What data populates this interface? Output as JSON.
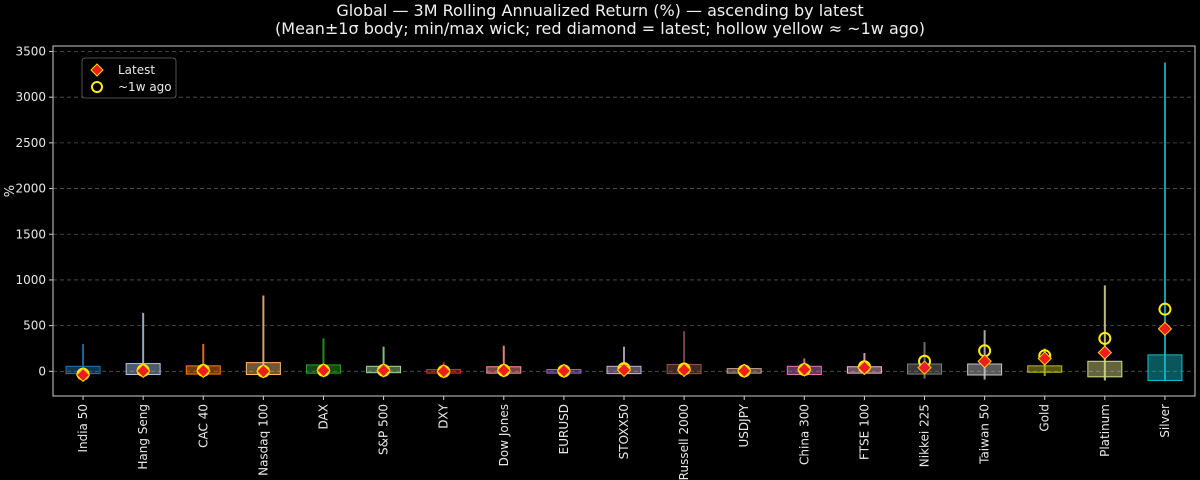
{
  "chart_data": {
    "type": "box",
    "title": "Global — 3M Rolling Annualized Return (%) — ascending by latest",
    "subtitle": "(Mean±1σ body; min/max wick; red diamond = latest; hollow yellow ≈ ~1w ago)",
    "ylabel": "%",
    "ylim": [
      -270,
      3560
    ],
    "yticks": [
      0,
      500,
      1000,
      1500,
      2000,
      2500,
      3000,
      3500
    ],
    "grid": true,
    "legend": {
      "placement": "top-left",
      "entries": [
        {
          "label": "Latest",
          "marker": "red-diamond"
        },
        {
          "label": "~1w ago",
          "marker": "hollow-yellow-circle"
        }
      ]
    },
    "colors": {
      "latest_marker": "#ee1c1c",
      "latest_edge": "#ffd700",
      "week_ago_marker": "#ffee00",
      "grid": "#555555",
      "axis": "#cccccc"
    },
    "series": [
      {
        "name": "India 50",
        "color": "#1f77b4",
        "mean": 15,
        "sd": 40,
        "min": -50,
        "max": 300,
        "latest": -40,
        "week_ago": -30
      },
      {
        "name": "Hang Seng",
        "color": "#aec7e8",
        "mean": 25,
        "sd": 60,
        "min": -40,
        "max": 640,
        "latest": 5,
        "week_ago": 10
      },
      {
        "name": "CAC 40",
        "color": "#ff7f0e",
        "mean": 15,
        "sd": 45,
        "min": -40,
        "max": 300,
        "latest": 5,
        "week_ago": 10
      },
      {
        "name": "Nasdaq 100",
        "color": "#ffbb78",
        "mean": 30,
        "sd": 65,
        "min": -40,
        "max": 830,
        "latest": 0,
        "week_ago": 0
      },
      {
        "name": "DAX",
        "color": "#2ca02c",
        "mean": 25,
        "sd": 45,
        "min": -30,
        "max": 360,
        "latest": 10,
        "week_ago": 10
      },
      {
        "name": "S&P 500",
        "color": "#98df8a",
        "mean": 20,
        "sd": 35,
        "min": -30,
        "max": 270,
        "latest": 10,
        "week_ago": 10
      },
      {
        "name": "DXY",
        "color": "#d62728",
        "mean": 0,
        "sd": 20,
        "min": -40,
        "max": 100,
        "latest": 0,
        "week_ago": 0
      },
      {
        "name": "Dow Jones",
        "color": "#ff9896",
        "mean": 15,
        "sd": 35,
        "min": -30,
        "max": 280,
        "latest": 10,
        "week_ago": 10
      },
      {
        "name": "EURUSD",
        "color": "#9467bd",
        "mean": 0,
        "sd": 20,
        "min": -30,
        "max": 40,
        "latest": 5,
        "week_ago": 5
      },
      {
        "name": "STOXX50",
        "color": "#c5b0d5",
        "mean": 15,
        "sd": 40,
        "min": -40,
        "max": 270,
        "latest": 15,
        "week_ago": 30
      },
      {
        "name": "Russell 2000",
        "color": "#8c564b",
        "mean": 25,
        "sd": 50,
        "min": -60,
        "max": 440,
        "latest": 15,
        "week_ago": 25
      },
      {
        "name": "USDJPY",
        "color": "#c49c94",
        "mean": 5,
        "sd": 25,
        "min": -40,
        "max": 80,
        "latest": 5,
        "week_ago": 5
      },
      {
        "name": "China 300",
        "color": "#e377c2",
        "mean": 10,
        "sd": 45,
        "min": -50,
        "max": 140,
        "latest": 20,
        "week_ago": 20
      },
      {
        "name": "FTSE 100",
        "color": "#f7b6d2",
        "mean": 15,
        "sd": 35,
        "min": -40,
        "max": 200,
        "latest": 40,
        "week_ago": 50
      },
      {
        "name": "Nikkei 225",
        "color": "#7f7f7f",
        "mean": 25,
        "sd": 55,
        "min": -80,
        "max": 320,
        "latest": 40,
        "week_ago": 110
      },
      {
        "name": "Taiwan 50",
        "color": "#c7c7c7",
        "mean": 20,
        "sd": 60,
        "min": -90,
        "max": 450,
        "latest": 110,
        "week_ago": 225
      },
      {
        "name": "Gold",
        "color": "#bcbd22",
        "mean": 25,
        "sd": 35,
        "min": -50,
        "max": 250,
        "latest": 140,
        "week_ago": 170
      },
      {
        "name": "Platinum",
        "color": "#dbdb8d",
        "mean": 25,
        "sd": 85,
        "min": -100,
        "max": 940,
        "latest": 205,
        "week_ago": 360
      },
      {
        "name": "Silver",
        "color": "#17becf",
        "mean": 40,
        "sd": 140,
        "min": -100,
        "max": 3380,
        "latest": 465,
        "week_ago": 680
      }
    ]
  }
}
